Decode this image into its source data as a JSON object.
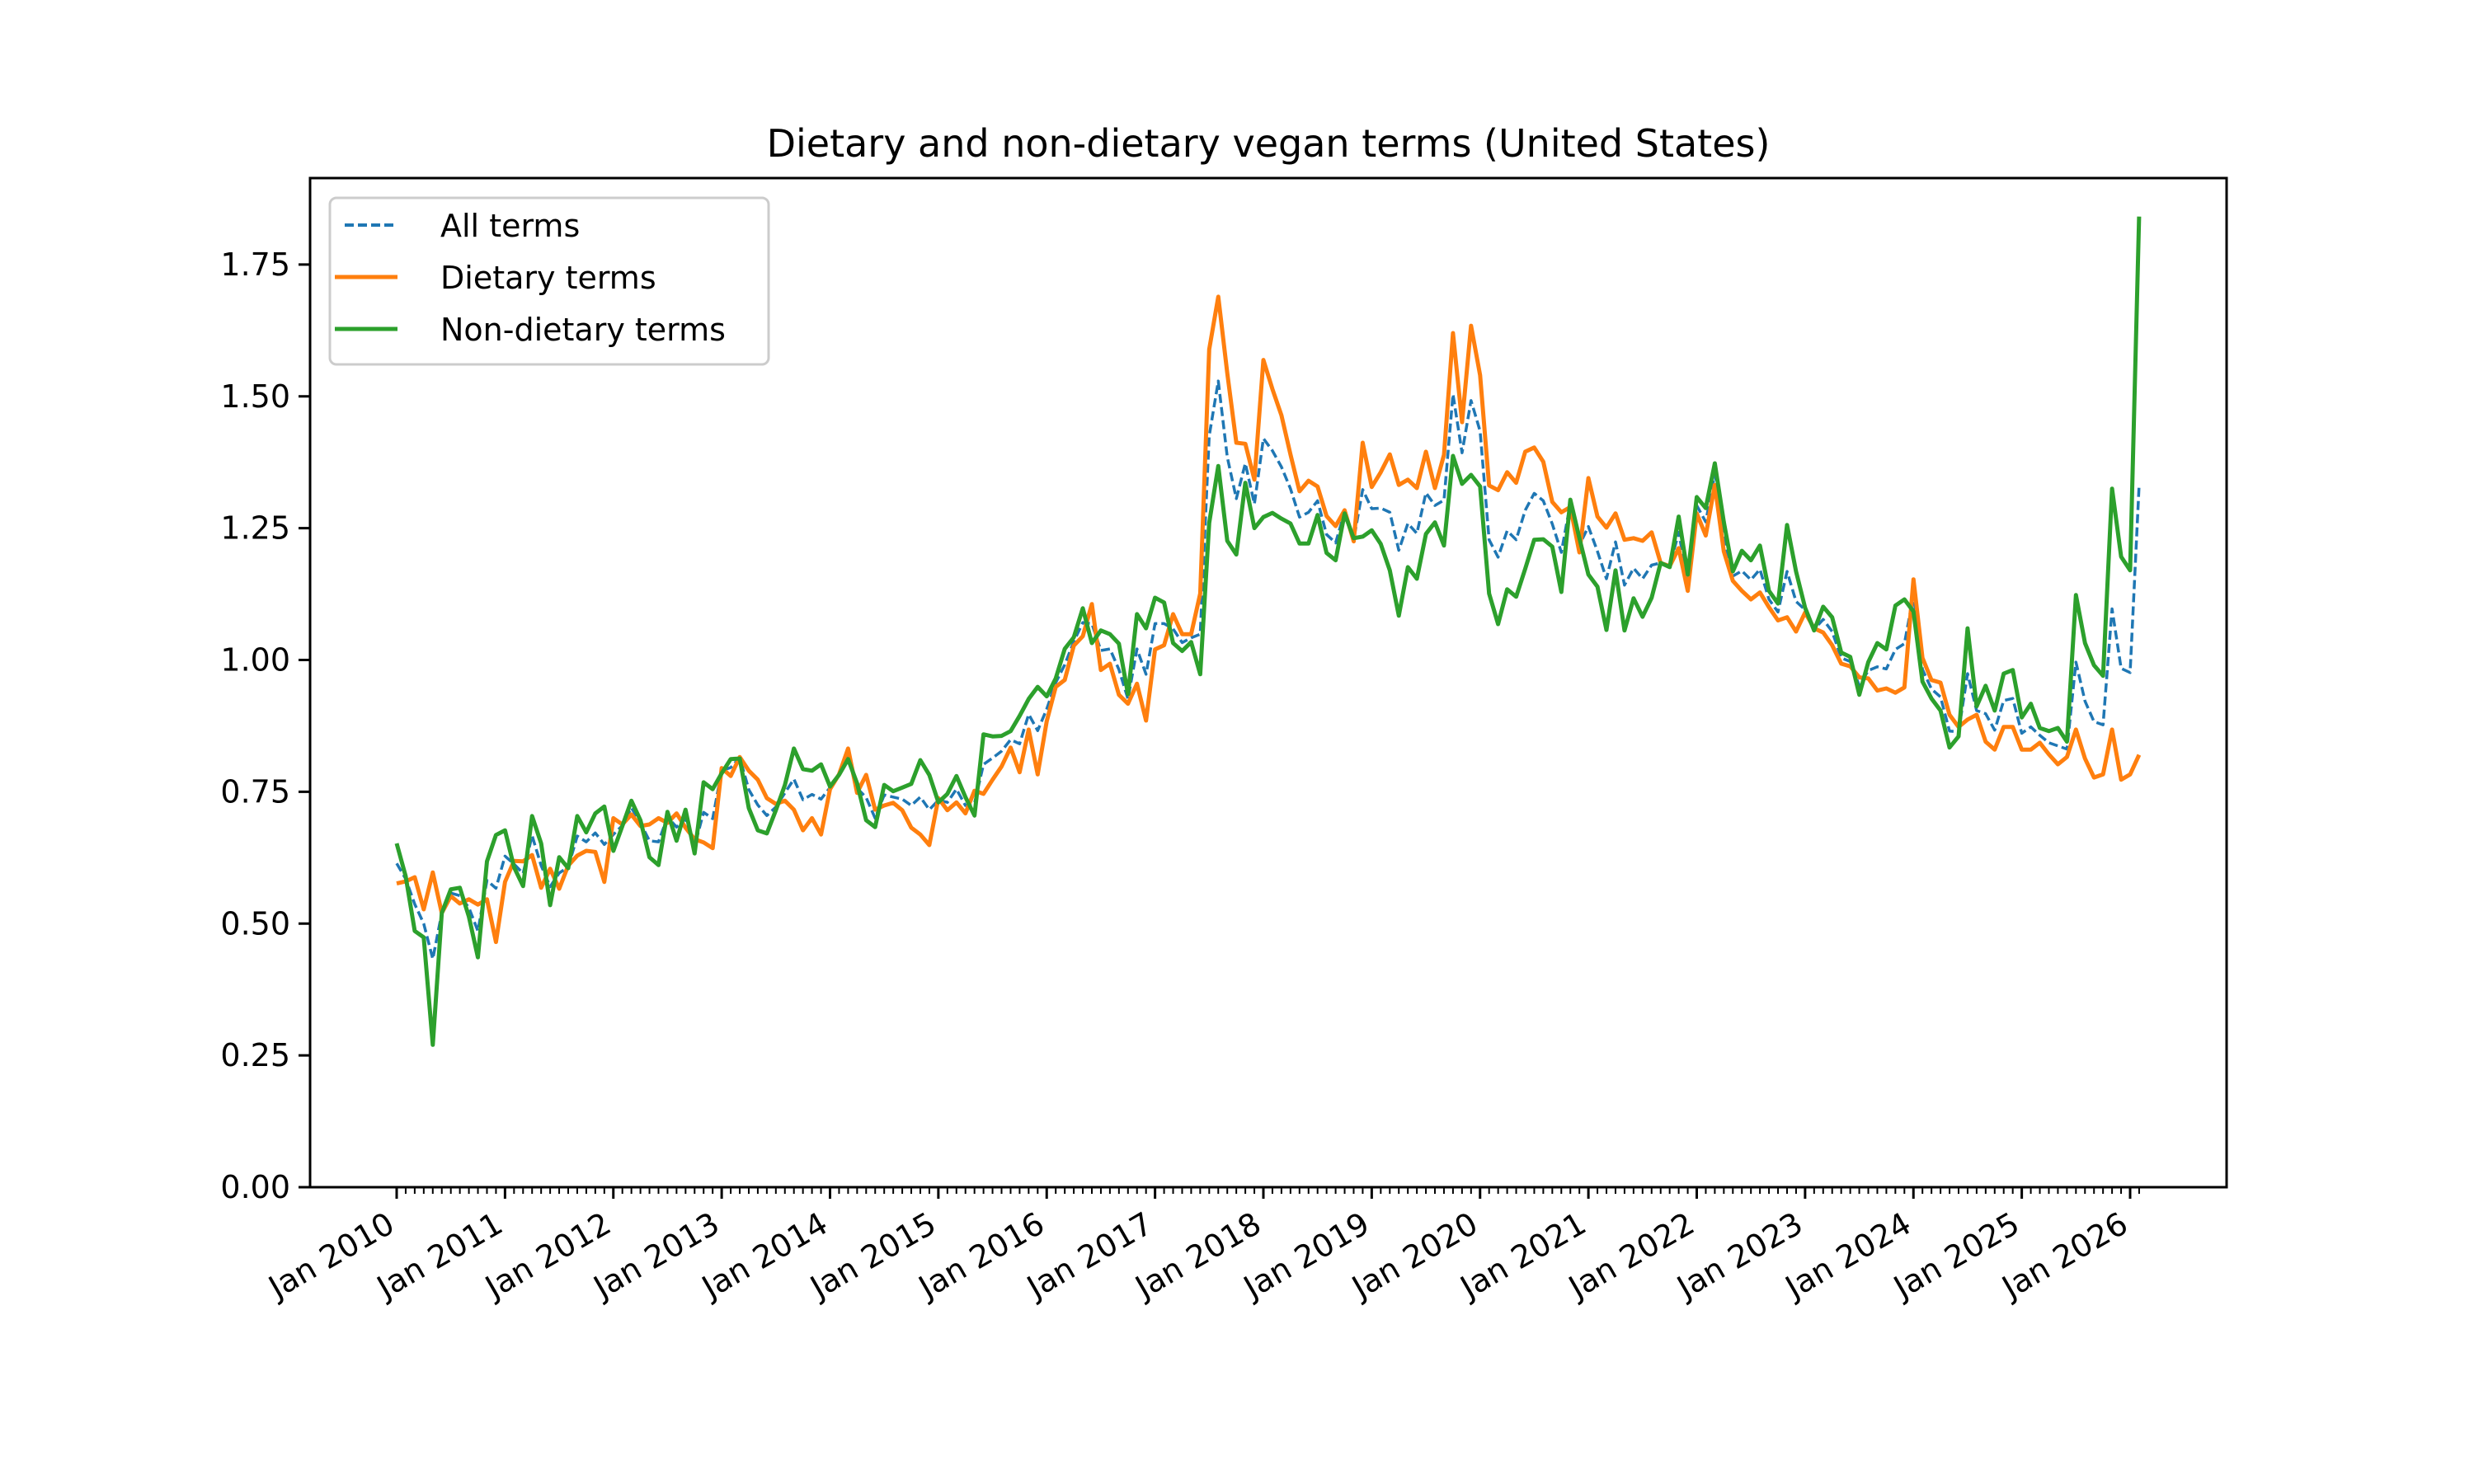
{
  "chart_data": {
    "type": "line",
    "title": "Dietary and non-dietary vegan terms (United States)",
    "xlabel": "",
    "ylabel": "",
    "ylim": [
      0,
      1.914
    ],
    "yticks": [
      0.0,
      0.25,
      0.5,
      0.75,
      1.0,
      1.25,
      1.5,
      1.75
    ],
    "ytick_labels": [
      "0.00",
      "0.25",
      "0.50",
      "0.75",
      "1.00",
      "1.25",
      "1.50",
      "1.75"
    ],
    "x_start": "2010-01",
    "x_end": "2026-02",
    "x_frequency": "monthly",
    "xlim_months": [
      -8.5,
      203.5
    ],
    "xtick_labels": [
      "Jan 2010",
      "Jan 2011",
      "Jan 2012",
      "Jan 2013",
      "Jan 2014",
      "Jan 2015",
      "Jan 2016",
      "Jan 2017",
      "Jan 2018",
      "Jan 2019",
      "Jan 2020",
      "Jan 2021",
      "Jan 2022",
      "Jan 2023",
      "Jan 2024",
      "Jan 2025",
      "Jan 2026"
    ],
    "minor_ticks": "monthly",
    "grid": false,
    "legend_position": "top-left",
    "series": [
      {
        "name": "All terms",
        "color": "#1f77b4",
        "style": "dashed",
        "derived": "mean",
        "values": []
      },
      {
        "name": "Dietary terms",
        "color": "#ff7f0e",
        "style": "solid",
        "values": [
          0.576,
          0.58,
          0.588,
          0.527,
          0.597,
          0.52,
          0.552,
          0.538,
          0.546,
          0.536,
          0.546,
          0.465,
          0.579,
          0.619,
          0.618,
          0.63,
          0.568,
          0.604,
          0.566,
          0.61,
          0.629,
          0.638,
          0.636,
          0.579,
          0.7,
          0.688,
          0.707,
          0.685,
          0.688,
          0.7,
          0.691,
          0.709,
          0.682,
          0.66,
          0.654,
          0.643,
          0.795,
          0.78,
          0.816,
          0.79,
          0.773,
          0.738,
          0.727,
          0.733,
          0.716,
          0.677,
          0.7,
          0.669,
          0.755,
          0.783,
          0.832,
          0.748,
          0.782,
          0.716,
          0.724,
          0.729,
          0.715,
          0.682,
          0.669,
          0.649,
          0.738,
          0.715,
          0.73,
          0.709,
          0.752,
          0.746,
          0.773,
          0.798,
          0.834,
          0.787,
          0.868,
          0.783,
          0.884,
          0.949,
          0.962,
          1.027,
          1.045,
          1.106,
          0.981,
          0.993,
          0.934,
          0.917,
          0.955,
          0.885,
          1.02,
          1.028,
          1.087,
          1.049,
          1.049,
          1.126,
          1.589,
          1.689,
          1.544,
          1.412,
          1.41,
          1.342,
          1.569,
          1.514,
          1.464,
          1.39,
          1.32,
          1.34,
          1.329,
          1.273,
          1.254,
          1.284,
          1.225,
          1.412,
          1.328,
          1.356,
          1.39,
          1.332,
          1.342,
          1.326,
          1.395,
          1.326,
          1.389,
          1.62,
          1.451,
          1.634,
          1.54,
          1.331,
          1.322,
          1.356,
          1.336,
          1.395,
          1.403,
          1.376,
          1.3,
          1.28,
          1.29,
          1.204,
          1.345,
          1.272,
          1.251,
          1.278,
          1.228,
          1.231,
          1.226,
          1.242,
          1.184,
          1.178,
          1.212,
          1.131,
          1.278,
          1.236,
          1.332,
          1.206,
          1.15,
          1.131,
          1.115,
          1.128,
          1.1,
          1.075,
          1.081,
          1.054,
          1.09,
          1.06,
          1.052,
          1.028,
          0.993,
          0.988,
          0.967,
          0.965,
          0.942,
          0.946,
          0.938,
          0.948,
          1.153,
          1.004,
          0.962,
          0.957,
          0.896,
          0.873,
          0.887,
          0.896,
          0.845,
          0.83,
          0.873,
          0.873,
          0.83,
          0.83,
          0.843,
          0.821,
          0.802,
          0.816,
          0.868,
          0.813,
          0.777,
          0.783,
          0.868,
          0.773,
          0.783,
          0.82
        ]
      },
      {
        "name": "Non-dietary terms",
        "color": "#2ca02c",
        "style": "solid",
        "values": [
          0.652,
          0.59,
          0.486,
          0.474,
          0.27,
          0.52,
          0.565,
          0.568,
          0.513,
          0.436,
          0.618,
          0.668,
          0.677,
          0.607,
          0.571,
          0.704,
          0.652,
          0.535,
          0.626,
          0.605,
          0.704,
          0.673,
          0.709,
          0.722,
          0.638,
          0.685,
          0.733,
          0.696,
          0.626,
          0.611,
          0.712,
          0.657,
          0.716,
          0.633,
          0.768,
          0.755,
          0.785,
          0.812,
          0.813,
          0.719,
          0.677,
          0.671,
          0.715,
          0.763,
          0.832,
          0.793,
          0.79,
          0.802,
          0.76,
          0.782,
          0.812,
          0.766,
          0.696,
          0.683,
          0.763,
          0.751,
          0.758,
          0.765,
          0.81,
          0.782,
          0.73,
          0.746,
          0.78,
          0.74,
          0.705,
          0.859,
          0.855,
          0.856,
          0.865,
          0.894,
          0.926,
          0.949,
          0.931,
          0.965,
          1.021,
          1.043,
          1.098,
          1.032,
          1.056,
          1.049,
          1.031,
          0.935,
          1.087,
          1.06,
          1.118,
          1.109,
          1.032,
          1.017,
          1.034,
          0.973,
          1.26,
          1.368,
          1.226,
          1.2,
          1.336,
          1.25,
          1.271,
          1.279,
          1.268,
          1.259,
          1.221,
          1.221,
          1.275,
          1.203,
          1.189,
          1.278,
          1.231,
          1.234,
          1.246,
          1.22,
          1.17,
          1.084,
          1.176,
          1.154,
          1.239,
          1.261,
          1.217,
          1.387,
          1.334,
          1.351,
          1.329,
          1.126,
          1.068,
          1.134,
          1.12,
          1.173,
          1.228,
          1.229,
          1.215,
          1.129,
          1.304,
          1.231,
          1.162,
          1.139,
          1.057,
          1.17,
          1.056,
          1.117,
          1.082,
          1.118,
          1.184,
          1.176,
          1.272,
          1.162,
          1.309,
          1.288,
          1.373,
          1.262,
          1.168,
          1.207,
          1.189,
          1.217,
          1.131,
          1.107,
          1.256,
          1.168,
          1.099,
          1.056,
          1.101,
          1.081,
          1.014,
          1.006,
          0.934,
          0.996,
          1.032,
          1.02,
          1.103,
          1.115,
          1.092,
          0.959,
          0.927,
          0.904,
          0.834,
          0.855,
          1.06,
          0.912,
          0.951,
          0.904,
          0.974,
          0.981,
          0.891,
          0.917,
          0.871,
          0.865,
          0.871,
          0.845,
          1.123,
          1.032,
          0.99,
          0.97,
          1.325,
          1.196,
          1.17,
          1.841
        ]
      }
    ]
  }
}
